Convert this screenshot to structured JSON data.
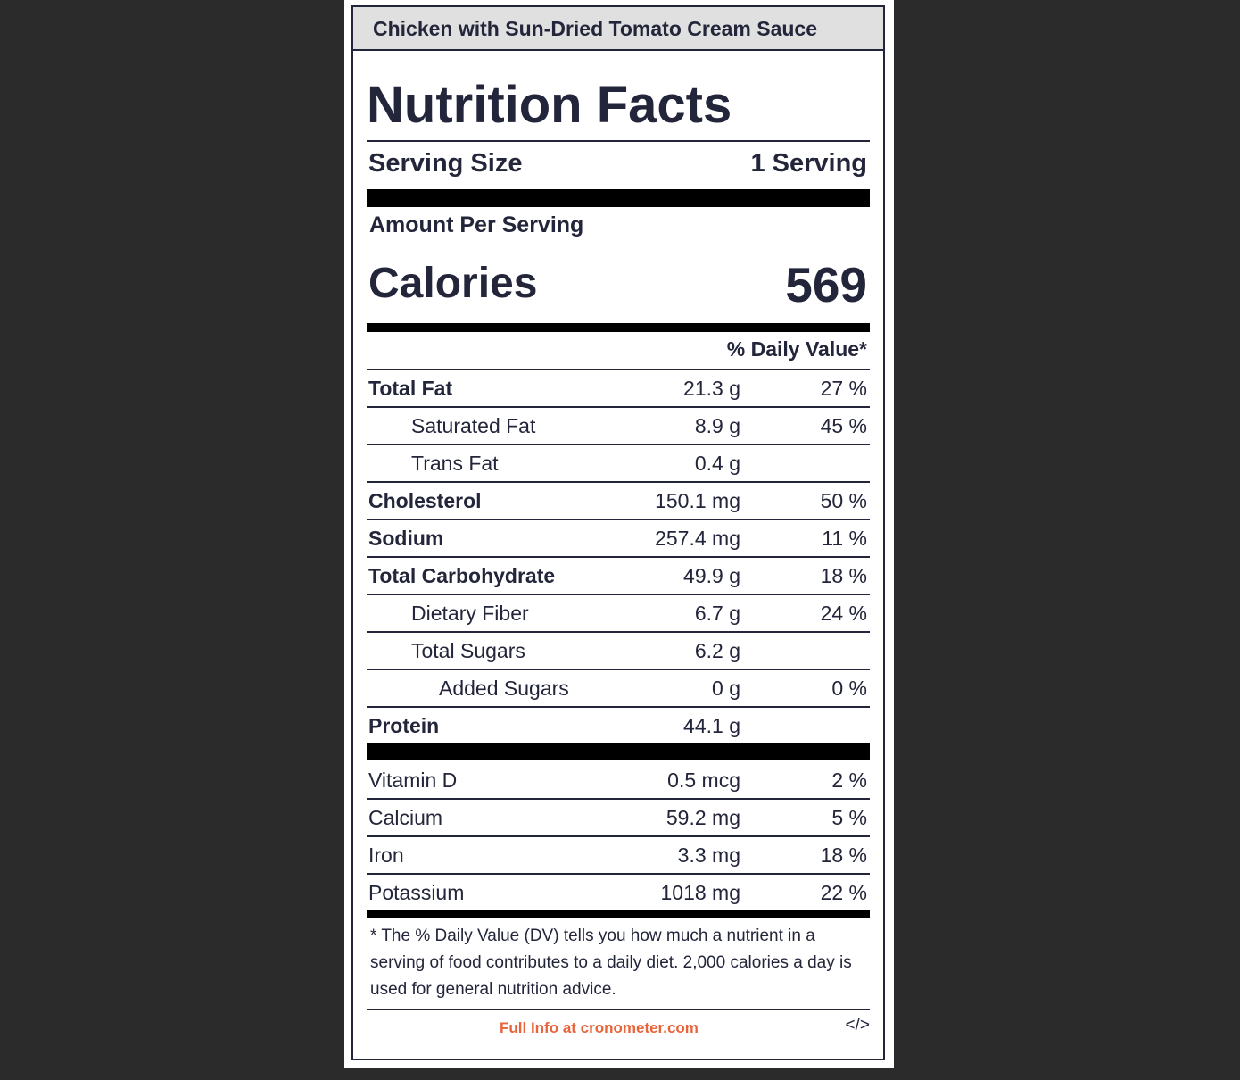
{
  "header": {
    "title": "Chicken with Sun-Dried Tomato Cream Sauce"
  },
  "label": {
    "heading": "Nutrition Facts",
    "serving_size": {
      "label": "Serving Size",
      "value": "1 Serving"
    },
    "amount_per_serving": "Amount Per Serving",
    "calories": {
      "label": "Calories",
      "value": "569"
    },
    "daily_value_header": "% Daily Value*",
    "nutrients": [
      {
        "name": "Total Fat",
        "amount": "21.3 g",
        "dv": "27 %",
        "sub": [
          {
            "name": "Saturated Fat",
            "amount": "8.9 g",
            "dv": "45 %"
          },
          {
            "name": "Trans Fat",
            "amount": "0.4 g"
          }
        ]
      },
      {
        "name": "Cholesterol",
        "amount": "150.1 mg",
        "dv": "50 %"
      },
      {
        "name": "Sodium",
        "amount": "257.4 mg",
        "dv": "11 %"
      },
      {
        "name": "Total Carbohydrate",
        "amount": "49.9 g",
        "dv": "18 %",
        "sub": [
          {
            "name": "Dietary Fiber",
            "amount": "6.7 g",
            "dv": "24 %"
          },
          {
            "name": "Total Sugars",
            "amount": "6.2 g",
            "sub": [
              {
                "name": "Added Sugars",
                "amount": "0 g",
                "dv": "0 %"
              }
            ]
          }
        ]
      },
      {
        "name": "Protein",
        "amount": "44.1 g"
      }
    ],
    "vitamins": [
      {
        "name": "Vitamin D",
        "amount": "0.5 mcg",
        "dv": "2 %"
      },
      {
        "name": "Calcium",
        "amount": "59.2 mg",
        "dv": "5 %"
      },
      {
        "name": "Iron",
        "amount": "3.3 mg",
        "dv": "18 %"
      },
      {
        "name": "Potassium",
        "amount": "1018 mg",
        "dv": "22 %"
      }
    ],
    "footnote": "* The % Daily Value (DV) tells you how much a nutrient in a serving of food contributes to a daily diet. 2,000 calories a day is used for general nutrition advice.",
    "link": "Full Info at cronometer.com",
    "embed": "</>"
  }
}
